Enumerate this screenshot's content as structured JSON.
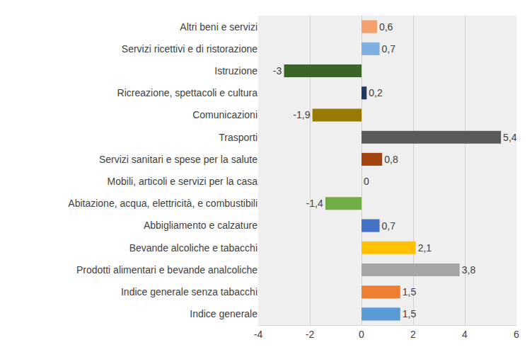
{
  "chart_data": {
    "type": "bar",
    "orientation": "horizontal",
    "categories": [
      "Altri beni e servizi",
      "Servizi ricettivi e di ristorazione",
      "Istruzione",
      "Ricreazione, spettacoli e cultura",
      "Comunicazioni",
      "Trasporti",
      "Servizi sanitari e spese per la salute",
      "Mobili, articoli e servizi per la casa",
      "Abitazione, acqua, elettricità, e combustibili",
      "Abbigliamento e calzature",
      "Bevande alcoliche e tabacchi",
      "Prodotti alimentari e bevande analcoliche",
      "Indice generale senza tabacchi",
      "Indice generale"
    ],
    "values": [
      0.6,
      0.7,
      -3,
      0.2,
      -1.9,
      5.4,
      0.8,
      0,
      -1.4,
      0.7,
      2.1,
      3.8,
      1.5,
      1.5
    ],
    "value_labels": [
      "0,6",
      "0,7",
      "-3",
      "0,2",
      "-1,9",
      "5,4",
      "0,8",
      "0",
      "-1,4",
      "0,7",
      "2,1",
      "3,8",
      "1,5",
      "1,5"
    ],
    "colors": [
      "#F4A06C",
      "#7DAFE0",
      "#3A6526",
      "#203864",
      "#977A00",
      "#5A5A5A",
      "#A3430F",
      "#264478",
      "#70AD47",
      "#4472C4",
      "#FFC000",
      "#A5A5A5",
      "#ED7D31",
      "#5B9BD5"
    ],
    "data_labels": true,
    "xlim": [
      -4,
      6
    ],
    "xticks": [
      -4,
      -2,
      0,
      2,
      4,
      6
    ],
    "grid": true
  }
}
